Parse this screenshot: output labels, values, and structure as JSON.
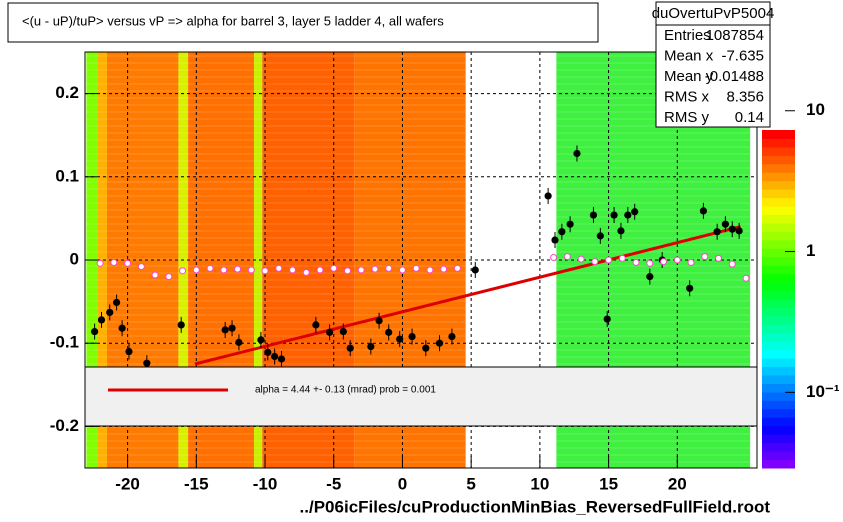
{
  "chart_data": {
    "type": "scatter",
    "title": "<(u - uP)/tuP>  versus   vP => alpha for barrel 3, layer 5 ladder 4, all wafers",
    "x_label": "../P06icFiles/cuProductionMinBias_ReversedFullField.root",
    "xlim": [
      -23.1,
      25.8
    ],
    "ylim": [
      -0.25,
      0.25
    ],
    "xticks": [
      -20,
      -15,
      -10,
      -5,
      0,
      5,
      10,
      15,
      20
    ],
    "yticks": [
      -0.2,
      -0.1,
      0,
      0.1,
      0.2
    ],
    "grid": true,
    "heatmap": [
      {
        "x0": -23,
        "x1": -22.2,
        "color": "#80ff00"
      },
      {
        "x0": -22.2,
        "x1": -21.5,
        "color": "#ffb000"
      },
      {
        "x0": -21.5,
        "x1": -16.3,
        "color": "#ff7a00"
      },
      {
        "x0": -16.3,
        "x1": -15.6,
        "color": "#d8f000"
      },
      {
        "x0": -15.6,
        "x1": -10.8,
        "color": "#ff7000"
      },
      {
        "x0": -10.8,
        "x1": -10.2,
        "color": "#c8f000"
      },
      {
        "x0": -10.2,
        "x1": -3.5,
        "color": "#ff6000"
      },
      {
        "x0": -3.5,
        "x1": 4.6,
        "color": "#ff7400"
      },
      {
        "x0": 11.2,
        "x1": 25.3,
        "color": "#40f040"
      }
    ],
    "series": [
      {
        "name": "mean",
        "color": "#000000",
        "x": [
          -22.4,
          -21.9,
          -21.3,
          -20.8,
          -20.4,
          -19.9,
          -18.6,
          -16.1,
          -12.9,
          -12.4,
          -11.9,
          -10.3,
          -9.8,
          -9.3,
          -8.8,
          -6.3,
          -5.3,
          -4.3,
          -3.8,
          -2.3,
          -1.7,
          -1.0,
          -0.2,
          0.7,
          1.7,
          2.7,
          3.6,
          5.3,
          10.6,
          11.1,
          11.6,
          12.2,
          12.7,
          13.9,
          14.4,
          14.9,
          15.4,
          15.9,
          16.4,
          16.9,
          18.0,
          18.9,
          20.9,
          21.9,
          22.9,
          23.5,
          24.0,
          24.5
        ],
        "values": [
          -0.086,
          -0.072,
          -0.063,
          -0.051,
          -0.082,
          -0.11,
          -0.124,
          -0.078,
          -0.084,
          -0.082,
          -0.099,
          -0.096,
          -0.111,
          -0.116,
          -0.119,
          -0.078,
          -0.087,
          -0.086,
          -0.106,
          -0.104,
          -0.073,
          -0.087,
          -0.095,
          -0.092,
          -0.106,
          -0.1,
          -0.092,
          -0.012,
          0.077,
          0.024,
          0.034,
          0.043,
          0.128,
          0.054,
          0.029,
          -0.071,
          0.054,
          0.035,
          0.054,
          0.058,
          -0.02,
          0,
          -0.034,
          0.059,
          0.034,
          0.043,
          0.037,
          0.035
        ]
      },
      {
        "name": "mean2",
        "color": "#ff44cc",
        "x": [
          -22,
          -21,
          -20,
          -19,
          -18,
          -17,
          -16,
          -15,
          -14,
          -13,
          -12,
          -11,
          -10,
          -9,
          -8,
          -7,
          -6,
          -5,
          -4,
          -3,
          -2,
          -1,
          0,
          1,
          2,
          3,
          4,
          11,
          12,
          13,
          14,
          15,
          16,
          17,
          18,
          19,
          20,
          21,
          22,
          23,
          24,
          25
        ],
        "values": [
          -0.004,
          -0.003,
          -0.004,
          -0.008,
          -0.018,
          -0.02,
          -0.013,
          -0.012,
          -0.01,
          -0.012,
          -0.011,
          -0.012,
          -0.013,
          -0.01,
          -0.012,
          -0.015,
          -0.012,
          -0.01,
          -0.013,
          -0.012,
          -0.011,
          -0.01,
          -0.012,
          -0.01,
          -0.012,
          -0.011,
          -0.01,
          0.003,
          0.004,
          0.001,
          -0.002,
          0,
          0.002,
          -0.003,
          -0.004,
          -0.002,
          0,
          -0.003,
          0.004,
          0.002,
          -0.005,
          -0.022
        ]
      }
    ],
    "fit": {
      "x": [
        -15.1,
        24.6
      ],
      "y": [
        -0.125,
        0.04
      ],
      "color": "#dd0000",
      "label": "alpha =    4.44 +-  0.13 (mrad) prob = 0.001"
    },
    "stats": {
      "title": "duOvertuPvP5004",
      "rows": [
        [
          "Entries",
          1087854
        ],
        [
          "Mean x",
          -7.635
        ],
        [
          "Mean y",
          -0.01488
        ],
        [
          "RMS x",
          8.356
        ],
        [
          "RMS y",
          0.14
        ]
      ]
    },
    "zlim": [
      0.029,
      7.3
    ],
    "zticks": [
      {
        "value": 10,
        "label": "10"
      },
      {
        "value": 1,
        "label": "1"
      },
      {
        "value": 0.1,
        "label": "10⁻¹"
      }
    ],
    "zlog": true
  }
}
